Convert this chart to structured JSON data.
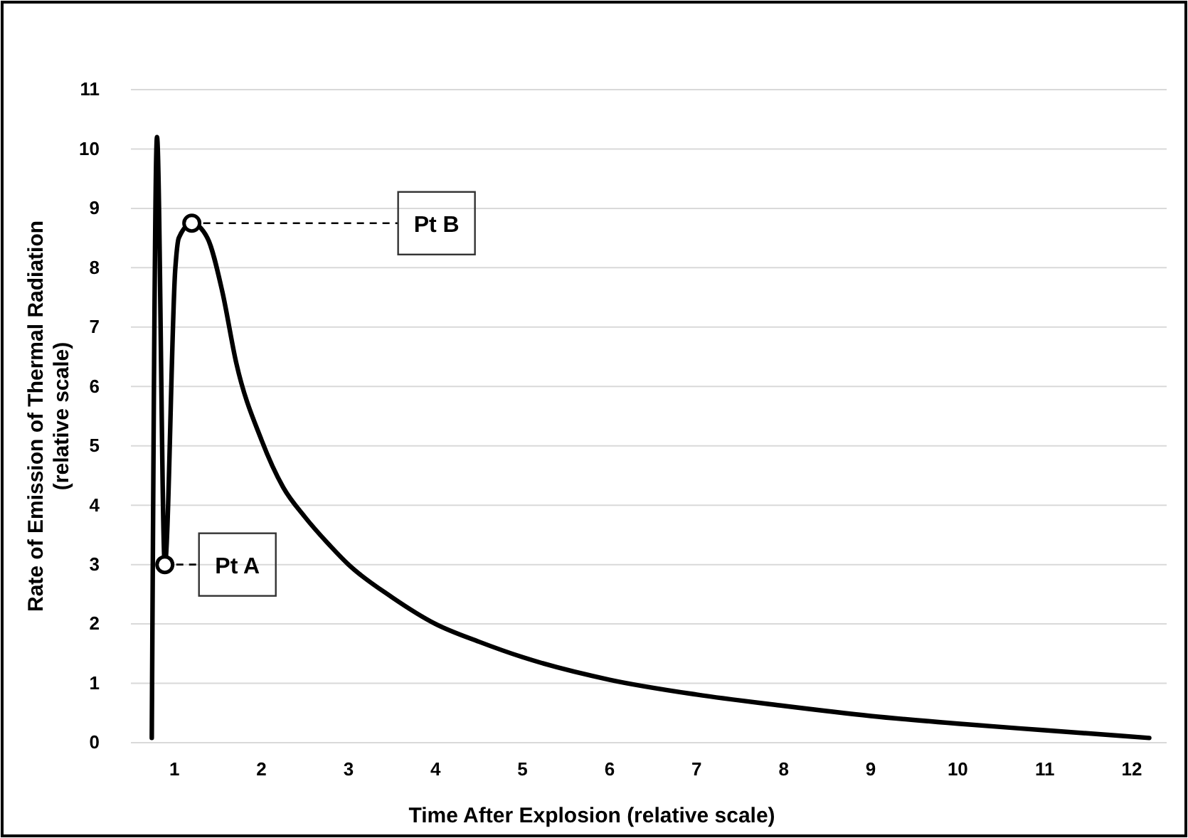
{
  "chart_data": {
    "type": "line",
    "xlabel": "Time After Explosion (relative scale)",
    "ylabel": "Rate of Emission of Thermal Radiation (relative scale)",
    "x": [
      0.74,
      0.8,
      0.89,
      1.01,
      1.05,
      1.2,
      1.38,
      1.55,
      1.71,
      2,
      2.25,
      2.5,
      2.8,
      3,
      3.5,
      4,
      4.5,
      5,
      6,
      7,
      8,
      9,
      10,
      11,
      12.2
    ],
    "series": [
      {
        "color": "#000000",
        "values": [
          0.08,
          10.2,
          3,
          7.98,
          8.5,
          8.75,
          8.5,
          7.6,
          6.4,
          5.1,
          4.3,
          3.8,
          3.3,
          3.0,
          2.45,
          2.0,
          1.7,
          1.44,
          1.06,
          0.81,
          0.62,
          0.45,
          0.32,
          0.21,
          0.08
        ]
      }
    ],
    "xlim": [
      0.5,
      12.4
    ],
    "xticks": [
      1,
      2,
      3,
      4,
      5,
      6,
      7,
      8,
      9,
      10,
      11,
      12
    ],
    "ylim": [
      0,
      11
    ],
    "yticks": [
      0,
      1,
      2,
      3,
      4,
      5,
      6,
      7,
      8,
      9,
      10,
      11
    ],
    "grid": "y",
    "marker": "none",
    "line_style": "solid",
    "annotations": [
      {
        "text": "Pt A",
        "x": 0.89,
        "y": 3
      },
      {
        "text": "Pt B",
        "x": 1.2,
        "y": 8.75
      }
    ]
  }
}
